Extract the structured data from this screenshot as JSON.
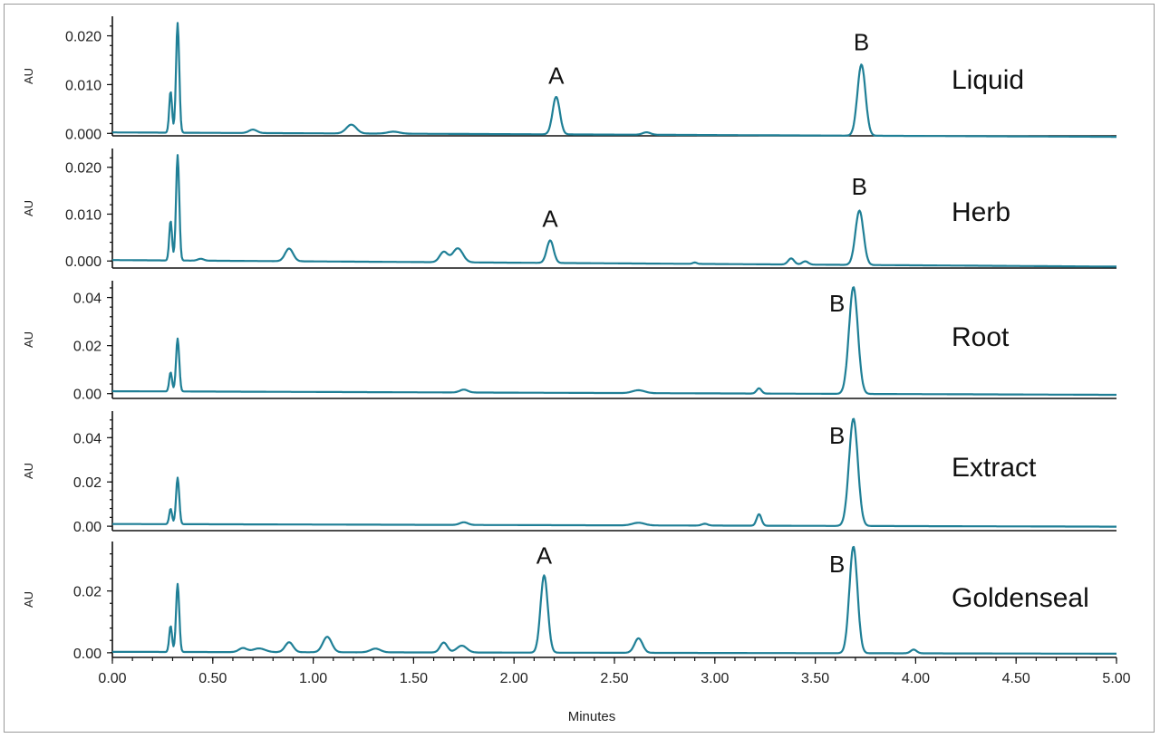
{
  "chart_data": {
    "type": "line",
    "x_axis": {
      "label": "Minutes",
      "range": [
        0,
        5
      ],
      "ticks": [
        "0.00",
        "0.50",
        "1.00",
        "1.50",
        "2.00",
        "2.50",
        "3.00",
        "3.50",
        "4.00",
        "4.50",
        "5.00"
      ]
    },
    "trace_color": "#1f7f96",
    "panels": [
      {
        "sample": "Liquid",
        "ylabel": "AU",
        "ylim": [
          -0.0005,
          0.024
        ],
        "yticks": [
          0.0,
          0.01,
          0.02
        ],
        "ytick_labels": [
          "0.000",
          "0.010",
          "0.020"
        ],
        "baseline": [
          0.0002,
          -0.0007
        ],
        "peaks": [
          {
            "t": 0.29,
            "h": 0.0085,
            "w": 0.007
          },
          {
            "t": 0.325,
            "h": 0.0225,
            "w": 0.008
          },
          {
            "t": 0.7,
            "h": 0.0007,
            "w": 0.02
          },
          {
            "t": 1.19,
            "h": 0.0018,
            "w": 0.025
          },
          {
            "t": 1.4,
            "h": 0.0004,
            "w": 0.03
          },
          {
            "t": 2.21,
            "h": 0.0077,
            "w": 0.018
          },
          {
            "t": 2.66,
            "h": 0.0005,
            "w": 0.02
          },
          {
            "t": 3.73,
            "h": 0.0146,
            "w": 0.02
          }
        ],
        "annotations": [
          {
            "text": "A",
            "t": 2.21
          },
          {
            "text": "B",
            "t": 3.73
          }
        ]
      },
      {
        "sample": "Herb",
        "ylabel": "AU",
        "ylim": [
          -0.0015,
          0.024
        ],
        "yticks": [
          0.0,
          0.01,
          0.02
        ],
        "ytick_labels": [
          "0.000",
          "0.010",
          "0.020"
        ],
        "baseline": [
          0.0002,
          -0.0012
        ],
        "peaks": [
          {
            "t": 0.29,
            "h": 0.0085,
            "w": 0.007
          },
          {
            "t": 0.325,
            "h": 0.0225,
            "w": 0.008
          },
          {
            "t": 0.44,
            "h": 0.0004,
            "w": 0.015
          },
          {
            "t": 0.88,
            "h": 0.0027,
            "w": 0.02
          },
          {
            "t": 1.65,
            "h": 0.0022,
            "w": 0.02
          },
          {
            "t": 1.72,
            "h": 0.003,
            "w": 0.025
          },
          {
            "t": 2.18,
            "h": 0.0048,
            "w": 0.017
          },
          {
            "t": 2.9,
            "h": 0.0003,
            "w": 0.01
          },
          {
            "t": 3.38,
            "h": 0.0013,
            "w": 0.015
          },
          {
            "t": 3.45,
            "h": 0.0007,
            "w": 0.015
          },
          {
            "t": 3.72,
            "h": 0.0116,
            "w": 0.02
          }
        ],
        "annotations": [
          {
            "text": "A",
            "t": 2.18
          },
          {
            "text": "B",
            "t": 3.72
          }
        ]
      },
      {
        "sample": "Root",
        "ylabel": "AU",
        "ylim": [
          -0.002,
          0.047
        ],
        "yticks": [
          0.0,
          0.02,
          0.04
        ],
        "ytick_labels": [
          "0.00",
          "0.02",
          "0.04"
        ],
        "baseline": [
          0.001,
          -0.0005
        ],
        "peaks": [
          {
            "t": 0.29,
            "h": 0.008,
            "w": 0.007
          },
          {
            "t": 0.325,
            "h": 0.022,
            "w": 0.008
          },
          {
            "t": 1.75,
            "h": 0.0012,
            "w": 0.02
          },
          {
            "t": 2.62,
            "h": 0.0012,
            "w": 0.03
          },
          {
            "t": 3.22,
            "h": 0.0022,
            "w": 0.012
          },
          {
            "t": 3.69,
            "h": 0.0445,
            "w": 0.022
          }
        ],
        "annotations": [
          {
            "text": "B",
            "t": 3.69
          }
        ]
      },
      {
        "sample": "Extract",
        "ylabel": "AU",
        "ylim": [
          -0.002,
          0.052
        ],
        "yticks": [
          0.0,
          0.02,
          0.04
        ],
        "ytick_labels": [
          "0.00",
          "0.02",
          "0.04"
        ],
        "baseline": [
          0.001,
          -0.0002
        ],
        "peaks": [
          {
            "t": 0.29,
            "h": 0.007,
            "w": 0.007
          },
          {
            "t": 0.325,
            "h": 0.021,
            "w": 0.008
          },
          {
            "t": 1.75,
            "h": 0.0012,
            "w": 0.02
          },
          {
            "t": 2.62,
            "h": 0.0012,
            "w": 0.03
          },
          {
            "t": 2.95,
            "h": 0.0008,
            "w": 0.015
          },
          {
            "t": 3.22,
            "h": 0.0052,
            "w": 0.012
          },
          {
            "t": 3.69,
            "h": 0.0485,
            "w": 0.022
          }
        ],
        "annotations": [
          {
            "text": "B",
            "t": 3.69
          }
        ]
      },
      {
        "sample": "Goldenseal",
        "ylabel": "AU",
        "ylim": [
          -0.0015,
          0.036
        ],
        "yticks": [
          0.0,
          0.02
        ],
        "ytick_labels": [
          "0.00",
          "0.02"
        ],
        "baseline": [
          0.0003,
          -0.0003
        ],
        "peaks": [
          {
            "t": 0.29,
            "h": 0.0085,
            "w": 0.007
          },
          {
            "t": 0.325,
            "h": 0.022,
            "w": 0.008
          },
          {
            "t": 0.65,
            "h": 0.0013,
            "w": 0.02
          },
          {
            "t": 0.73,
            "h": 0.0012,
            "w": 0.03
          },
          {
            "t": 0.88,
            "h": 0.0032,
            "w": 0.02
          },
          {
            "t": 1.07,
            "h": 0.005,
            "w": 0.022
          },
          {
            "t": 1.31,
            "h": 0.0012,
            "w": 0.025
          },
          {
            "t": 1.65,
            "h": 0.0032,
            "w": 0.018
          },
          {
            "t": 1.74,
            "h": 0.0022,
            "w": 0.025
          },
          {
            "t": 2.15,
            "h": 0.025,
            "w": 0.018
          },
          {
            "t": 2.62,
            "h": 0.0047,
            "w": 0.02
          },
          {
            "t": 3.69,
            "h": 0.0345,
            "w": 0.02
          },
          {
            "t": 3.99,
            "h": 0.0012,
            "w": 0.015
          }
        ],
        "annotations": [
          {
            "text": "A",
            "t": 2.15
          },
          {
            "text": "B",
            "t": 3.69
          }
        ]
      }
    ]
  }
}
